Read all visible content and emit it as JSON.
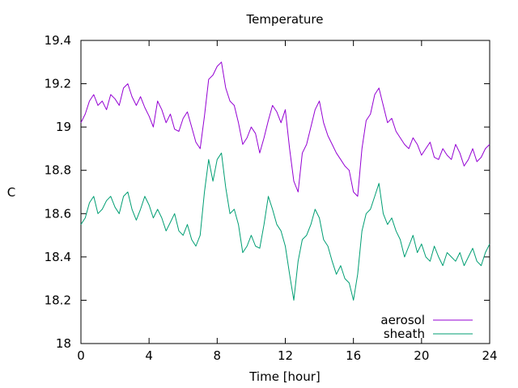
{
  "chart_data": {
    "type": "line",
    "title": "Temperature",
    "xlabel": "Time [hour]",
    "ylabel": "C",
    "xlim": [
      0,
      24
    ],
    "ylim": [
      18,
      19.4
    ],
    "xticks": [
      0,
      4,
      8,
      12,
      16,
      20,
      24
    ],
    "xtick_labels": [
      "0",
      "4",
      "8",
      "12",
      "16",
      "20",
      "24"
    ],
    "yticks": [
      18,
      18.2,
      18.4,
      18.6,
      18.8,
      19,
      19.2,
      19.4
    ],
    "ytick_labels": [
      "18",
      "18.2",
      "18.4",
      "18.6",
      "18.8",
      "19",
      "19.2",
      "19.4"
    ],
    "grid": false,
    "legend_position": "bottom-right",
    "series": [
      {
        "name": "aerosol",
        "color": "#9400d3",
        "x": [
          0,
          0.25,
          0.5,
          0.75,
          1,
          1.25,
          1.5,
          1.75,
          2,
          2.25,
          2.5,
          2.75,
          3,
          3.25,
          3.5,
          3.75,
          4,
          4.25,
          4.5,
          4.75,
          5,
          5.25,
          5.5,
          5.75,
          6,
          6.25,
          6.5,
          6.75,
          7,
          7.25,
          7.5,
          7.75,
          8,
          8.25,
          8.5,
          8.75,
          9,
          9.25,
          9.5,
          9.75,
          10,
          10.25,
          10.5,
          10.75,
          11,
          11.25,
          11.5,
          11.75,
          12,
          12.25,
          12.5,
          12.75,
          13,
          13.25,
          13.5,
          13.75,
          14,
          14.25,
          14.5,
          14.75,
          15,
          15.25,
          15.5,
          15.75,
          16,
          16.25,
          16.5,
          16.75,
          17,
          17.25,
          17.5,
          17.75,
          18,
          18.25,
          18.5,
          18.75,
          19,
          19.25,
          19.5,
          19.75,
          20,
          20.25,
          20.5,
          20.75,
          21,
          21.25,
          21.5,
          21.75,
          22,
          22.25,
          22.5,
          22.75,
          23,
          23.25,
          23.5,
          23.75,
          24
        ],
        "y": [
          19.02,
          19.06,
          19.12,
          19.15,
          19.1,
          19.12,
          19.08,
          19.15,
          19.13,
          19.1,
          19.18,
          19.2,
          19.14,
          19.1,
          19.14,
          19.09,
          19.05,
          19.0,
          19.12,
          19.08,
          19.02,
          19.06,
          18.99,
          18.98,
          19.04,
          19.07,
          19.0,
          18.93,
          18.9,
          19.05,
          19.22,
          19.24,
          19.28,
          19.3,
          19.18,
          19.12,
          19.1,
          19.02,
          18.92,
          18.95,
          19.0,
          18.97,
          18.88,
          18.95,
          19.03,
          19.1,
          19.07,
          19.02,
          19.08,
          18.9,
          18.75,
          18.7,
          18.88,
          18.92,
          19.0,
          19.08,
          19.12,
          19.02,
          18.96,
          18.92,
          18.88,
          18.85,
          18.82,
          18.8,
          18.7,
          18.68,
          18.9,
          19.03,
          19.06,
          19.15,
          19.18,
          19.1,
          19.02,
          19.04,
          18.98,
          18.95,
          18.92,
          18.9,
          18.95,
          18.92,
          18.87,
          18.9,
          18.93,
          18.86,
          18.85,
          18.9,
          18.87,
          18.85,
          18.92,
          18.88,
          18.82,
          18.85,
          18.9,
          18.84,
          18.86,
          18.9,
          18.92
        ]
      },
      {
        "name": "sheath",
        "color": "#009e73",
        "x": [
          0,
          0.25,
          0.5,
          0.75,
          1,
          1.25,
          1.5,
          1.75,
          2,
          2.25,
          2.5,
          2.75,
          3,
          3.25,
          3.5,
          3.75,
          4,
          4.25,
          4.5,
          4.75,
          5,
          5.25,
          5.5,
          5.75,
          6,
          6.25,
          6.5,
          6.75,
          7,
          7.25,
          7.5,
          7.75,
          8,
          8.25,
          8.5,
          8.75,
          9,
          9.25,
          9.5,
          9.75,
          10,
          10.25,
          10.5,
          10.75,
          11,
          11.25,
          11.5,
          11.75,
          12,
          12.25,
          12.5,
          12.75,
          13,
          13.25,
          13.5,
          13.75,
          14,
          14.25,
          14.5,
          14.75,
          15,
          15.25,
          15.5,
          15.75,
          16,
          16.25,
          16.5,
          16.75,
          17,
          17.25,
          17.5,
          17.75,
          18,
          18.25,
          18.5,
          18.75,
          19,
          19.25,
          19.5,
          19.75,
          20,
          20.25,
          20.5,
          20.75,
          21,
          21.25,
          21.5,
          21.75,
          22,
          22.25,
          22.5,
          22.75,
          23,
          23.25,
          23.5,
          23.75,
          24
        ],
        "y": [
          18.55,
          18.58,
          18.65,
          18.68,
          18.6,
          18.62,
          18.66,
          18.68,
          18.63,
          18.6,
          18.68,
          18.7,
          18.62,
          18.57,
          18.62,
          18.68,
          18.64,
          18.58,
          18.62,
          18.58,
          18.52,
          18.56,
          18.6,
          18.52,
          18.5,
          18.55,
          18.48,
          18.45,
          18.5,
          18.7,
          18.85,
          18.75,
          18.85,
          18.88,
          18.72,
          18.6,
          18.62,
          18.55,
          18.42,
          18.45,
          18.5,
          18.45,
          18.44,
          18.55,
          18.68,
          18.62,
          18.55,
          18.52,
          18.45,
          18.32,
          18.2,
          18.38,
          18.48,
          18.5,
          18.55,
          18.62,
          18.58,
          18.48,
          18.45,
          18.38,
          18.32,
          18.36,
          18.3,
          18.28,
          18.2,
          18.32,
          18.52,
          18.6,
          18.62,
          18.68,
          18.74,
          18.6,
          18.55,
          18.58,
          18.52,
          18.48,
          18.4,
          18.45,
          18.5,
          18.42,
          18.46,
          18.4,
          18.38,
          18.45,
          18.4,
          18.36,
          18.42,
          18.4,
          18.38,
          18.42,
          18.36,
          18.4,
          18.44,
          18.38,
          18.36,
          18.42,
          18.46
        ]
      }
    ]
  }
}
